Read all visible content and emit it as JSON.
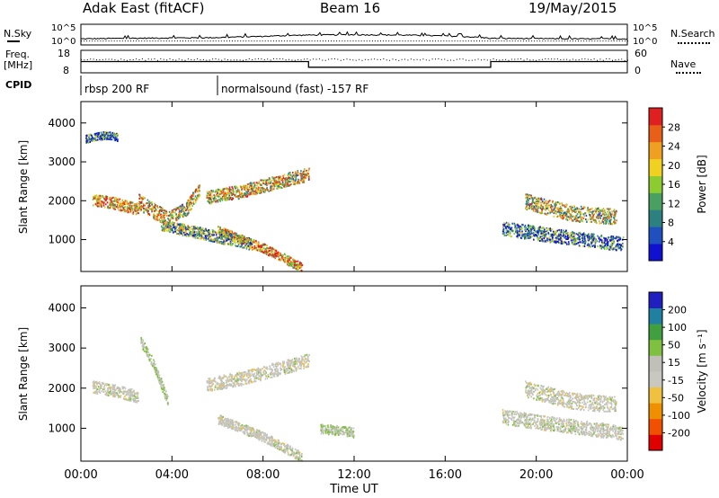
{
  "header": {
    "station": "Adak East (fitACF)",
    "beam": "Beam 16",
    "date": "19/May/2015"
  },
  "strip_labels": {
    "nsky": "N.Sky",
    "nsearch": "N.Search",
    "freq_line1": "Freq.",
    "freq_line2": "[MHz]",
    "nave": "Nave",
    "cpid": "CPID",
    "noise_ticks_left": [
      "10^5",
      "10^0"
    ],
    "noise_ticks_right": [
      "10^5",
      "10^0"
    ],
    "freq_ticks": [
      "18",
      "8"
    ],
    "nave_ticks": [
      "60",
      "0"
    ]
  },
  "cpid_segments": [
    {
      "label": "rbsp 200 RF",
      "start": "00:00",
      "end": "06:00"
    },
    {
      "label": "normalsound (fast) -157 RF",
      "start": "06:00",
      "end": "24:00"
    }
  ],
  "colors": {
    "power_scale": [
      "#1010d0",
      "#2050c0",
      "#2c8080",
      "#4aa060",
      "#8ccc30",
      "#f0d020",
      "#f0a020",
      "#e86018",
      "#e02020"
    ],
    "velocity_scale": [
      "#e00000",
      "#f05000",
      "#f09000",
      "#f0c040",
      "#c8c8c0",
      "#c0c0b8",
      "#80c040",
      "#40a040",
      "#2080a0",
      "#2020c0"
    ]
  },
  "chart_data": [
    {
      "type": "line",
      "title": "N.Sky / N.Search",
      "x_range": [
        "00:00",
        "24:00"
      ],
      "ylim": [
        "10^0",
        "10^5"
      ],
      "scale": "log",
      "series": [
        {
          "name": "N.Sky",
          "x": [
            "00:00",
            "02:00",
            "04:00",
            "06:00",
            "08:00",
            "10:00",
            "12:00",
            "14:00",
            "16:00",
            "18:00",
            "20:00",
            "22:00",
            "24:00"
          ],
          "values": [
            30,
            40,
            50,
            60,
            120,
            250,
            300,
            250,
            150,
            40,
            35,
            30,
            30
          ]
        }
      ]
    },
    {
      "type": "line",
      "title": "Freq. / Nave",
      "x_range": [
        "00:00",
        "24:00"
      ],
      "series": [
        {
          "name": "Freq.",
          "x": [
            "00:00",
            "10:00",
            "10:00",
            "18:00",
            "18:00",
            "24:00"
          ],
          "values": [
            13,
            13,
            10.5,
            10.5,
            13,
            13
          ]
        },
        {
          "name": "Nave",
          "x": [
            "00:00",
            "24:00"
          ],
          "values": [
            35,
            35
          ]
        }
      ]
    },
    {
      "type": "heatmap",
      "quantity": "Power",
      "ylabel": "Slant Range [km]",
      "yticks": [
        "1000",
        "2000",
        "3000",
        "4000"
      ],
      "ylim": [
        180,
        4550
      ],
      "colorbar_label": "Power [dB]",
      "colorbar_ticks": [
        "4",
        "8",
        "12",
        "16",
        "20",
        "24",
        "28"
      ],
      "colorbar_range": [
        0,
        30
      ],
      "bands": [
        {
          "t": [
            0.5,
            1.5,
            2.5
          ],
          "r": [
            2050,
            1950,
            1800
          ],
          "v": 22,
          "w": 150
        },
        {
          "t": [
            2.5,
            3.2,
            3.8
          ],
          "r": [
            2000,
            1750,
            1550
          ],
          "v": 20,
          "w": 200
        },
        {
          "t": [
            3.8,
            4.6,
            5.2
          ],
          "r": [
            1550,
            1800,
            2300
          ],
          "v": 18,
          "w": 180
        },
        {
          "t": [
            5.5,
            7.0,
            9.0,
            10.0
          ],
          "r": [
            2100,
            2250,
            2550,
            2700
          ],
          "v": 18,
          "w": 170
        },
        {
          "t": [
            6.0,
            8.0,
            9.7
          ],
          "r": [
            1250,
            800,
            300
          ],
          "v": 22,
          "w": 120
        },
        {
          "t": [
            3.5,
            5.5,
            7.5
          ],
          "r": [
            1400,
            1150,
            900
          ],
          "v": 12,
          "w": 150
        },
        {
          "t": [
            19.5,
            21.5,
            23.5
          ],
          "r": [
            2000,
            1700,
            1600
          ],
          "v": 16,
          "w": 200
        },
        {
          "t": [
            18.5,
            21.0,
            23.8
          ],
          "r": [
            1300,
            1100,
            900
          ],
          "v": 8,
          "w": 180
        },
        {
          "t": [
            0.2,
            1.0,
            1.6
          ],
          "r": [
            3600,
            3700,
            3650
          ],
          "v": 8,
          "w": 100
        }
      ]
    },
    {
      "type": "heatmap",
      "quantity": "Velocity",
      "ylabel": "Slant Range [km]",
      "yticks": [
        "1000",
        "2000",
        "3000",
        "4000"
      ],
      "ylim": [
        180,
        4550
      ],
      "colorbar_label": "Velocity [m s⁻¹]",
      "colorbar_ticks": [
        "-200",
        "-100",
        "-50",
        "-15",
        "15",
        "50",
        "100",
        "200"
      ],
      "colorbar_range": [
        -250,
        250
      ],
      "bands": [
        {
          "t": [
            0.5,
            1.5,
            2.5
          ],
          "r": [
            2050,
            1950,
            1800
          ],
          "v": 0,
          "w": 150
        },
        {
          "t": [
            2.6,
            3.2,
            3.8
          ],
          "r": [
            3200,
            2600,
            1700
          ],
          "v": 40,
          "w": 120
        },
        {
          "t": [
            5.5,
            7.0,
            9.0,
            10.0
          ],
          "r": [
            2100,
            2250,
            2550,
            2700
          ],
          "v": -5,
          "w": 170
        },
        {
          "t": [
            6.0,
            8.0,
            9.7
          ],
          "r": [
            1250,
            800,
            300
          ],
          "v": 0,
          "w": 120
        },
        {
          "t": [
            10.5,
            11.5,
            12.0
          ],
          "r": [
            1000,
            950,
            900
          ],
          "v": 40,
          "w": 120
        },
        {
          "t": [
            19.5,
            21.5,
            23.5
          ],
          "r": [
            2000,
            1700,
            1600
          ],
          "v": 0,
          "w": 200
        },
        {
          "t": [
            18.5,
            21.0,
            23.8
          ],
          "r": [
            1300,
            1100,
            900
          ],
          "v": 5,
          "w": 180
        }
      ]
    }
  ],
  "x_axis": {
    "label": "Time UT",
    "ticks": [
      "00:00",
      "04:00",
      "08:00",
      "12:00",
      "16:00",
      "20:00",
      "00:00"
    ]
  }
}
